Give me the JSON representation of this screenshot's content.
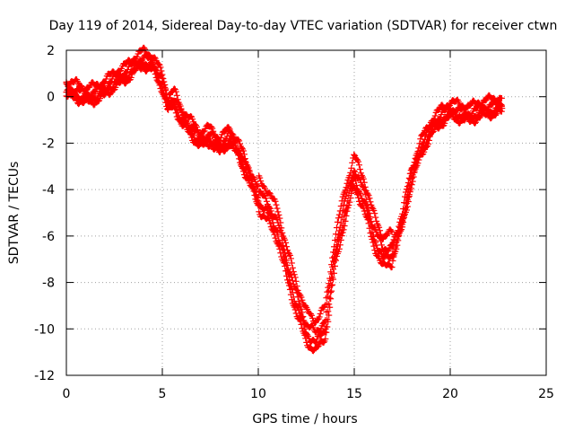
{
  "chart_data": {
    "type": "scatter",
    "title": "Day 119 of 2014, Sidereal Day-to-day VTEC variation (SDTVAR) for receiver ctwn",
    "xlabel": "GPS time / hours",
    "ylabel": "SDTVAR / TECUs",
    "xlim": [
      0,
      25
    ],
    "ylim": [
      -12,
      2
    ],
    "x_ticks": [
      0,
      5,
      10,
      15,
      20,
      25
    ],
    "y_ticks": [
      -12,
      -10,
      -8,
      -6,
      -4,
      -2,
      0,
      2
    ],
    "grid": true,
    "marker": "+",
    "color": "#ff0000",
    "series": [
      {
        "name": "ctwn",
        "x": [
          0.0,
          0.5,
          1.0,
          1.5,
          2.0,
          2.5,
          3.0,
          3.5,
          4.0,
          4.5,
          5.0,
          5.3,
          5.6,
          6.0,
          6.5,
          7.0,
          7.5,
          8.0,
          8.5,
          9.0,
          9.5,
          10.0,
          10.5,
          11.0,
          11.5,
          12.0,
          12.5,
          13.0,
          13.5,
          14.0,
          14.5,
          15.0,
          15.5,
          16.0,
          16.5,
          17.0,
          17.5,
          18.0,
          18.5,
          19.0,
          19.5,
          20.0,
          20.5,
          21.0,
          21.5,
          22.0,
          22.7
        ],
        "y": [
          0.2,
          0.1,
          -0.1,
          0.0,
          0.2,
          0.6,
          0.8,
          1.2,
          1.5,
          1.3,
          0.5,
          -0.5,
          -0.2,
          -1.0,
          -1.5,
          -2.0,
          -1.8,
          -2.3,
          -1.8,
          -2.5,
          -3.5,
          -4.5,
          -5.0,
          -5.8,
          -7.5,
          -9.0,
          -10.2,
          -10.6,
          -10.0,
          -7.0,
          -5.0,
          -3.5,
          -4.5,
          -6.0,
          -7.0,
          -6.8,
          -5.5,
          -3.5,
          -2.3,
          -1.5,
          -1.0,
          -0.7,
          -0.8,
          -0.9,
          -0.7,
          -0.6,
          -0.5
        ]
      }
    ]
  }
}
